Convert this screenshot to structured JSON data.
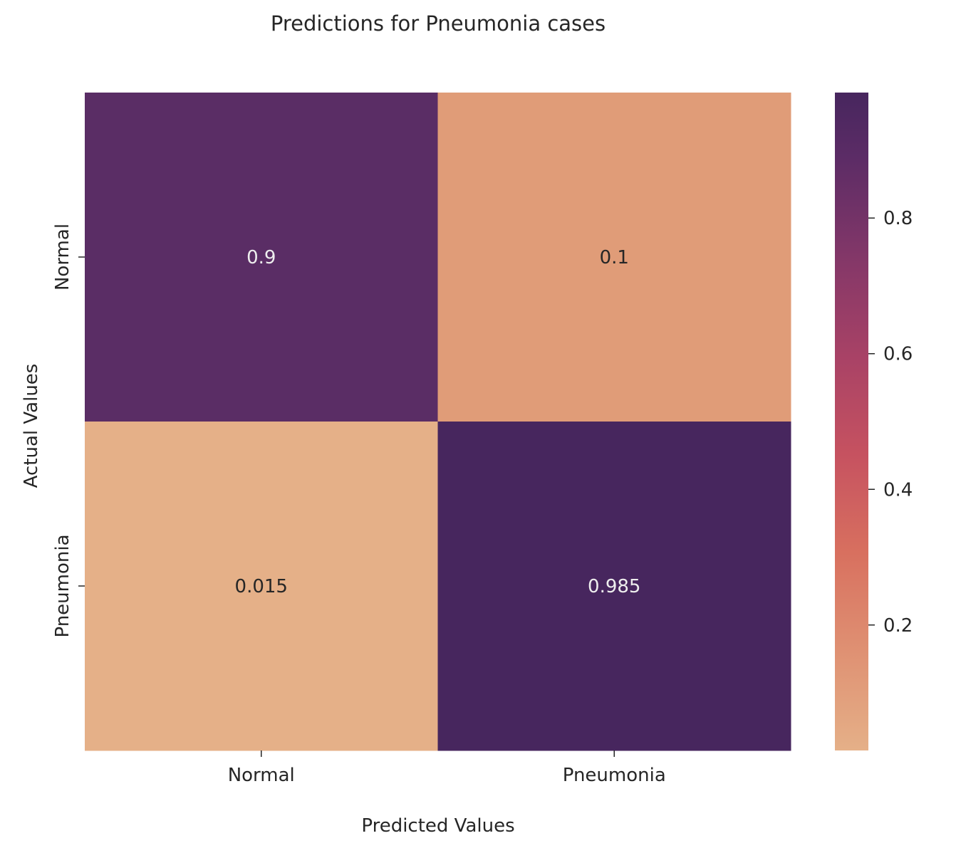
{
  "chart_data": {
    "type": "heatmap",
    "title": "Predictions for Pneumonia cases",
    "xlabel": "Predicted Values",
    "ylabel": "Actual Values",
    "x_categories": [
      "Normal",
      "Pneumonia"
    ],
    "y_categories": [
      "Normal",
      "Pneumonia"
    ],
    "values": [
      [
        0.9,
        0.1
      ],
      [
        0.015,
        0.985
      ]
    ],
    "cell_labels": [
      [
        "0.9",
        "0.1"
      ],
      [
        "0.015",
        "0.985"
      ]
    ],
    "cell_colors": [
      [
        "#5a2d65",
        "#e09c78"
      ],
      [
        "#e5b088",
        "#47265e"
      ]
    ],
    "label_colors": [
      [
        "#eeeeee",
        "#262626"
      ],
      [
        "#262626",
        "#eeeeee"
      ]
    ],
    "colormap": "flare_r",
    "colorbar": {
      "range": [
        0.015,
        0.985
      ],
      "ticks": [
        0.2,
        0.4,
        0.6,
        0.8
      ],
      "tick_labels": [
        "0.2",
        "0.4",
        "0.6",
        "0.8"
      ],
      "gradient_stops": [
        {
          "at": 0.0,
          "color": "#e5b088"
        },
        {
          "at": 0.15,
          "color": "#df9173"
        },
        {
          "at": 0.3,
          "color": "#d8705f"
        },
        {
          "at": 0.45,
          "color": "#c65260"
        },
        {
          "at": 0.6,
          "color": "#a84266"
        },
        {
          "at": 0.75,
          "color": "#833768"
        },
        {
          "at": 0.9,
          "color": "#5c2c66"
        },
        {
          "at": 1.0,
          "color": "#47265e"
        }
      ]
    },
    "grid": false,
    "legend": "colorbar-right"
  }
}
